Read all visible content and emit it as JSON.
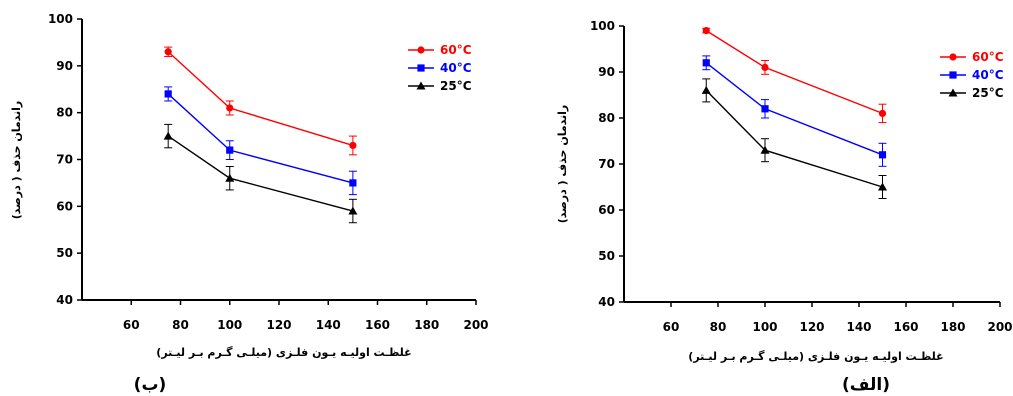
{
  "chart_data": [
    {
      "type": "line",
      "panel_label": "(ب)",
      "xlabel": "غلظـت اولیـه یـون فلـزی (میلـی گـرم بـر لیـتر)",
      "ylabel": "راندمان حذف ( درصد)",
      "xlim": [
        40,
        200
      ],
      "ylim": [
        40,
        100
      ],
      "xticks": [
        60,
        80,
        100,
        120,
        140,
        160,
        180,
        200
      ],
      "yticks": [
        40,
        50,
        60,
        70,
        80,
        90,
        100
      ],
      "legend_position": "top-right",
      "x": [
        75,
        100,
        150
      ],
      "series": [
        {
          "name": "60°C",
          "color": "#ff0000",
          "marker": "circle",
          "values": [
            93,
            81,
            73
          ],
          "errors": [
            1,
            1.5,
            2
          ]
        },
        {
          "name": "40°C",
          "color": "#0000ff",
          "marker": "square",
          "values": [
            84,
            72,
            65
          ],
          "errors": [
            1.5,
            2,
            2.5
          ]
        },
        {
          "name": "25°C",
          "color": "#000000",
          "marker": "triangle",
          "values": [
            75,
            66,
            59
          ],
          "errors": [
            2.5,
            2.5,
            2.5
          ]
        }
      ]
    },
    {
      "type": "line",
      "panel_label": "(الف)",
      "xlabel": "غلظـت اولیـه یـون فلـزی (میلـی گـرم بـر لیـتر)",
      "ylabel": "راندمان حذف ( درصد)",
      "xlim": [
        40,
        200
      ],
      "ylim": [
        40,
        100
      ],
      "xticks": [
        60,
        80,
        100,
        120,
        140,
        160,
        180,
        200
      ],
      "yticks": [
        40,
        50,
        60,
        70,
        80,
        90,
        100
      ],
      "legend_position": "top-right",
      "x": [
        75,
        100,
        150
      ],
      "series": [
        {
          "name": "60°C",
          "color": "#ff0000",
          "marker": "circle",
          "values": [
            99,
            91,
            81
          ],
          "errors": [
            0.5,
            1.5,
            2
          ]
        },
        {
          "name": "40°C",
          "color": "#0000ff",
          "marker": "square",
          "values": [
            92,
            82,
            72
          ],
          "errors": [
            1.5,
            2,
            2.5
          ]
        },
        {
          "name": "25°C",
          "color": "#000000",
          "marker": "triangle",
          "values": [
            86,
            73,
            65
          ],
          "errors": [
            2.5,
            2.5,
            2.5
          ]
        }
      ]
    }
  ]
}
